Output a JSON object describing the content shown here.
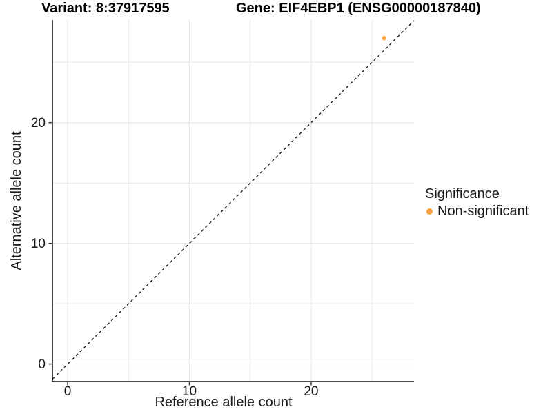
{
  "chart_data": {
    "type": "scatter",
    "title_variant": "Variant: 8:37917595",
    "title_gene": "Gene: EIF4EBP1 (ENSG00000187840)",
    "xlabel": "Reference allele count",
    "ylabel": "Alternative allele count",
    "xlim": [
      -1.25,
      28.45
    ],
    "ylim": [
      -1.45,
      28.5
    ],
    "x_ticks": [
      0,
      10,
      20
    ],
    "y_ticks": [
      0,
      10,
      20
    ],
    "grid_lines_x": [
      0,
      5,
      10,
      15,
      20,
      25
    ],
    "grid_lines_y": [
      0,
      5,
      10,
      15,
      20,
      25
    ],
    "grid": true,
    "identity_line": {
      "equation": "y = x",
      "style": "dashed",
      "color": "#000000"
    },
    "series": [
      {
        "name": "Non-significant",
        "color": "#FAA53C",
        "points": [
          {
            "x": 26,
            "y": 27
          }
        ]
      }
    ],
    "legend": {
      "title": "Significance",
      "position": "right",
      "entries": [
        {
          "label": "Non-significant",
          "color": "#FAA53C"
        }
      ]
    },
    "colors": {
      "grid": "#E6E6E6",
      "axis": "#333333",
      "tick_text": "#1a1a1a",
      "background": "#FFFFFF"
    }
  }
}
